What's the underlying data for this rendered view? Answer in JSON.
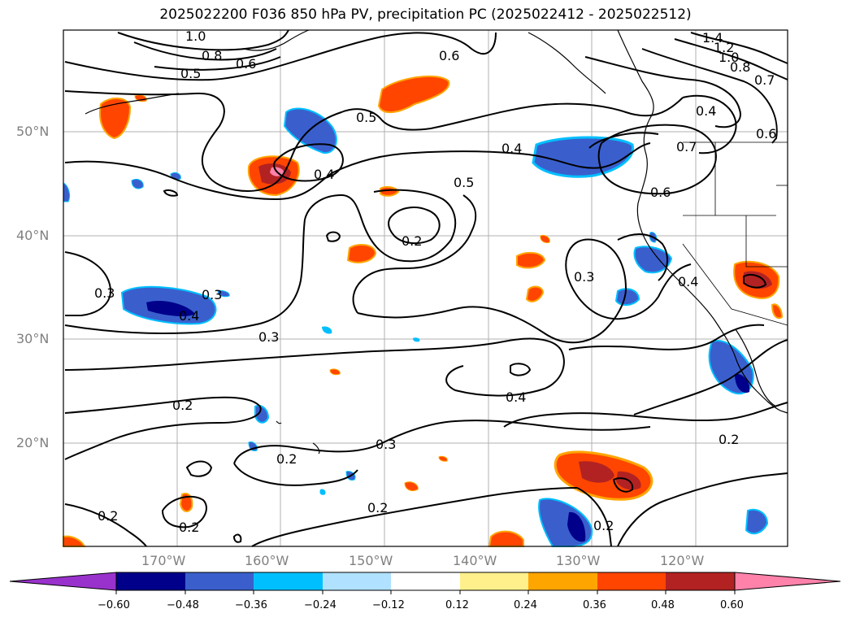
{
  "title": "2025022200 F036 850 hPa PV, precipitation PC (2025022412 - 2025022512)",
  "lat_labels": [
    "50°N",
    "40°N",
    "30°N",
    "20°N"
  ],
  "lon_labels": [
    "170°W",
    "160°W",
    "150°W",
    "140°W",
    "130°W",
    "120°W"
  ],
  "contour_labels": [
    "1.0",
    "0.8",
    "0.6",
    "0.5",
    "0.6",
    "0.5",
    "0.4",
    "0.4",
    "0.5",
    "0.2",
    "0.3",
    "0.3",
    "0.2",
    "0.2",
    "0.3",
    "0.2",
    "0.2",
    "0.2",
    "0.4",
    "0.3",
    "0.4",
    "0.2",
    "0.2",
    "1.4",
    "1.2",
    "1.0",
    "0.8",
    "0.7",
    "0.4",
    "0.7",
    "0.6",
    "0.6",
    "0.4",
    "0.3"
  ],
  "colorbar": {
    "ticks": [
      "−0.60",
      "−0.48",
      "−0.36",
      "−0.24",
      "−0.12",
      "0.12",
      "0.24",
      "0.36",
      "0.48",
      "0.60"
    ],
    "colors": [
      "#9932cc",
      "#00008b",
      "#3a5fcd",
      "#00bfff",
      "#b0e2ff",
      "#ffffff",
      "#fff08c",
      "#ffa500",
      "#ff4500",
      "#b22222",
      "#ff82ab"
    ]
  },
  "colors": {
    "contour": "#000000",
    "grid": "#b0b0b0",
    "coast": "#000000"
  }
}
